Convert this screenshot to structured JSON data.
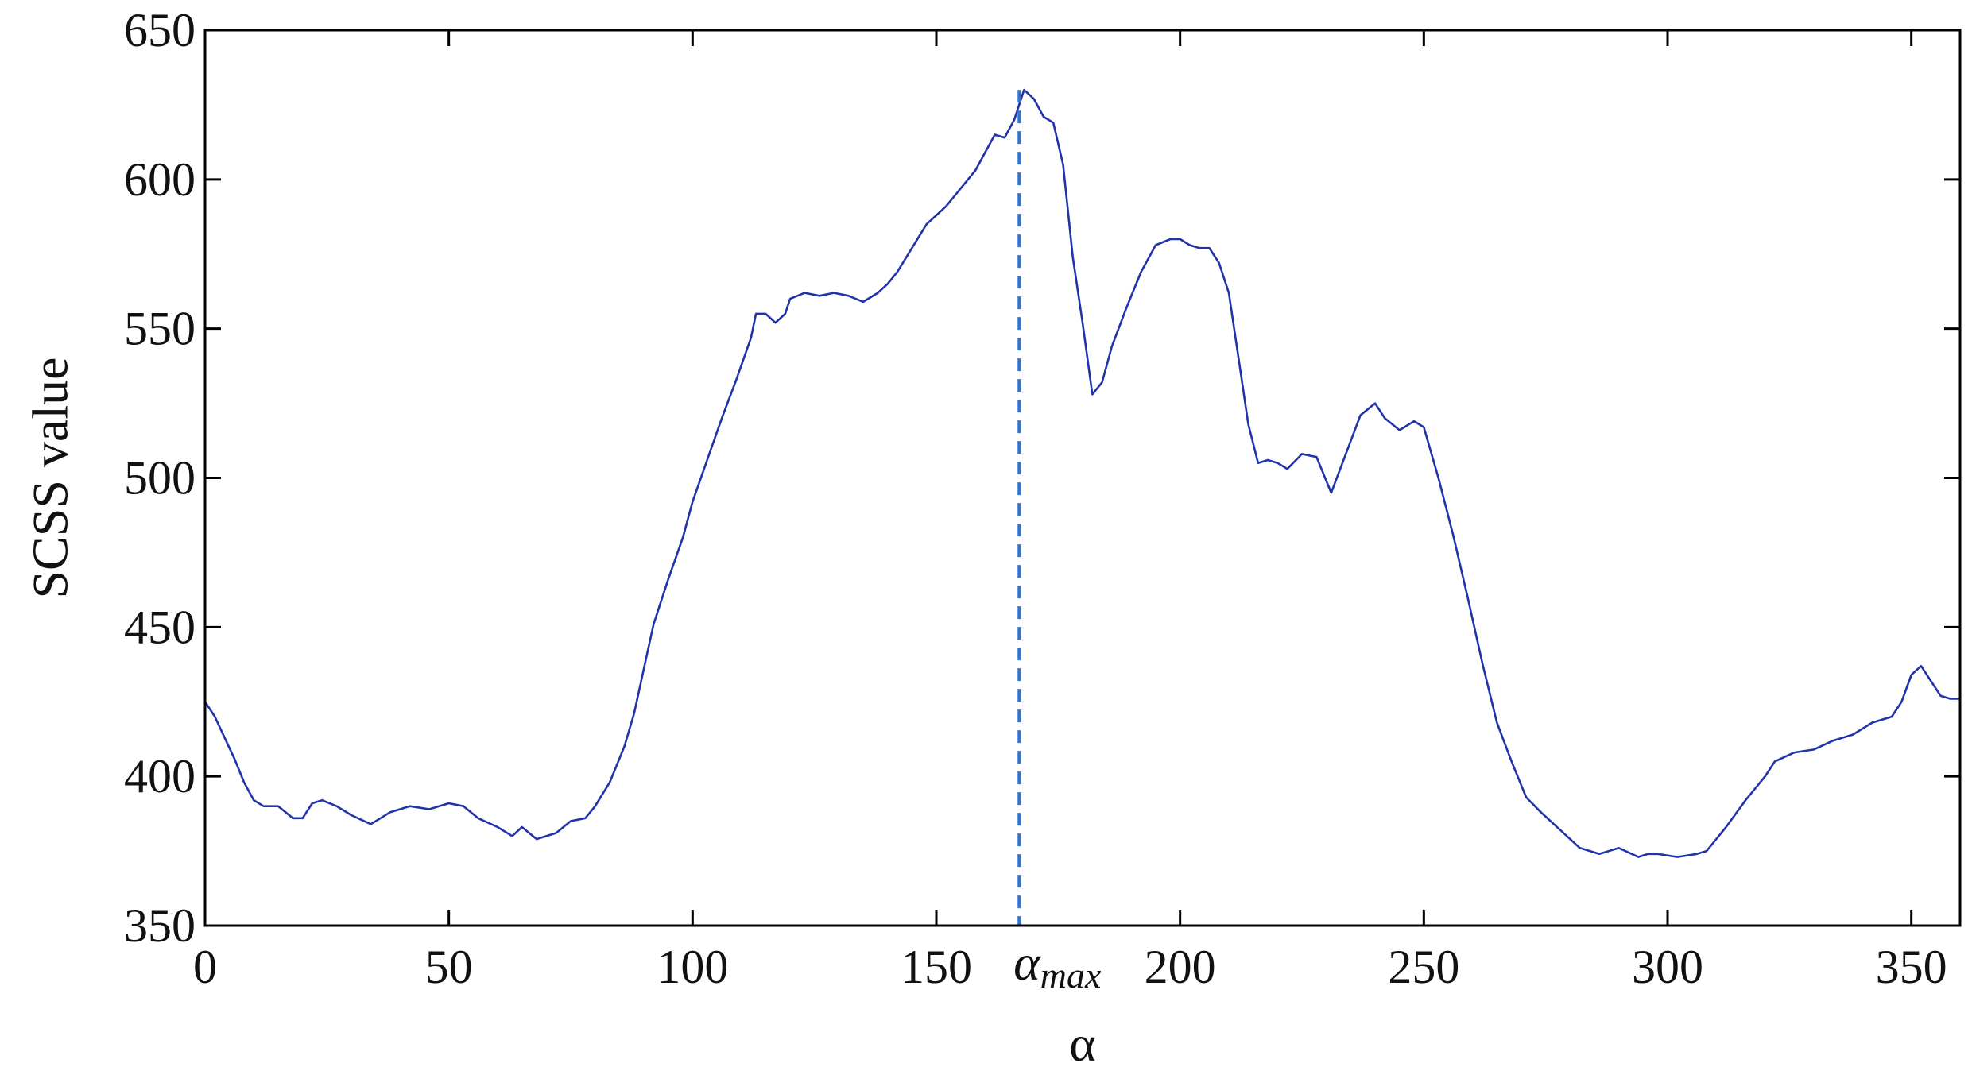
{
  "chart_data": {
    "type": "line",
    "title": "",
    "xlabel": "α",
    "ylabel": "SCSS value",
    "xlim": [
      0,
      360
    ],
    "ylim": [
      350,
      650
    ],
    "xticks": [
      0,
      50,
      100,
      150,
      200,
      250,
      300,
      350
    ],
    "yticks": [
      350,
      400,
      450,
      500,
      550,
      600,
      650
    ],
    "grid": false,
    "legend": "none",
    "colors": {
      "series": "#2233aa",
      "marker": "#2e75d6",
      "axis": "#000000"
    },
    "series": [
      {
        "x": [
          0,
          2,
          4,
          6,
          8,
          10,
          12,
          15,
          18,
          20,
          22,
          24,
          27,
          30,
          34,
          38,
          42,
          46,
          50,
          53,
          56,
          60,
          63,
          65,
          68,
          72,
          75,
          78,
          80,
          83,
          86,
          88,
          90,
          92,
          95,
          98,
          100,
          103,
          106,
          109,
          112,
          113,
          115,
          117,
          119,
          120,
          123,
          126,
          129,
          132,
          135,
          138,
          140,
          142,
          145,
          148,
          150,
          152,
          155,
          158,
          160,
          162,
          164,
          166,
          168,
          170,
          172,
          174,
          176,
          178,
          180,
          182,
          184,
          186,
          189,
          192,
          195,
          198,
          200,
          202,
          204,
          206,
          208,
          210,
          212,
          214,
          216,
          218,
          220,
          222,
          225,
          228,
          231,
          234,
          237,
          240,
          242,
          245,
          248,
          250,
          253,
          256,
          259,
          262,
          265,
          268,
          271,
          274,
          278,
          282,
          286,
          290,
          294,
          296,
          298,
          302,
          306,
          308,
          312,
          316,
          320,
          322,
          326,
          330,
          334,
          338,
          342,
          346,
          348,
          350,
          352,
          354,
          356,
          358,
          360
        ],
        "y": [
          425,
          420,
          413,
          406,
          398,
          392,
          390,
          390,
          386,
          386,
          391,
          392,
          390,
          387,
          384,
          388,
          390,
          389,
          391,
          390,
          386,
          383,
          380,
          383,
          379,
          381,
          385,
          386,
          390,
          398,
          410,
          421,
          436,
          451,
          466,
          480,
          492,
          506,
          520,
          533,
          547,
          555,
          555,
          552,
          555,
          560,
          562,
          561,
          562,
          561,
          559,
          562,
          565,
          569,
          577,
          585,
          588,
          591,
          597,
          603,
          609,
          615,
          614,
          620,
          630,
          627,
          621,
          619,
          605,
          574,
          552,
          528,
          532,
          544,
          557,
          569,
          578,
          580,
          580,
          578,
          577,
          577,
          572,
          562,
          540,
          518,
          505,
          506,
          505,
          503,
          508,
          507,
          495,
          508,
          521,
          525,
          520,
          516,
          519,
          517,
          500,
          481,
          460,
          438,
          418,
          405,
          393,
          388,
          382,
          376,
          374,
          376,
          373,
          374,
          374,
          373,
          374,
          375,
          383,
          392,
          400,
          405,
          408,
          409,
          412,
          414,
          418,
          420,
          425,
          434,
          437,
          432,
          427,
          426,
          426
        ]
      }
    ],
    "annotations": [
      {
        "type": "vertical-dashed-line",
        "x": 167,
        "y": 630,
        "label": "αmax",
        "label_base": "α",
        "label_sub": "max"
      }
    ]
  }
}
